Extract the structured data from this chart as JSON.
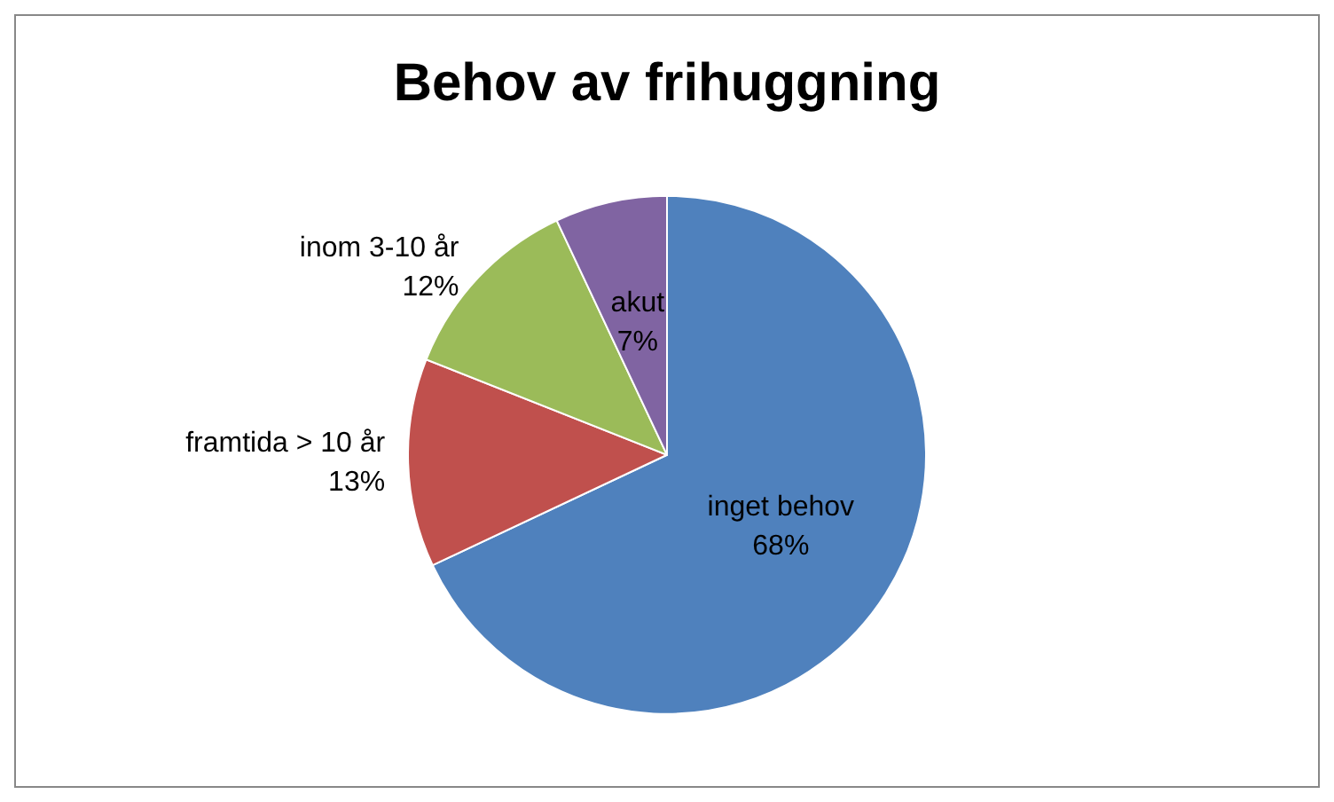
{
  "chart_data": {
    "type": "pie",
    "title": "Behov av frihuggning",
    "categories": [
      "inget behov",
      "framtida > 10 år",
      "inom 3-10 år",
      "akut"
    ],
    "values": [
      68,
      13,
      12,
      7
    ],
    "colors": [
      "#4f81bd",
      "#c0504d",
      "#9bbb59",
      "#8064a2"
    ],
    "value_labels": [
      "68%",
      "13%",
      "12%",
      "7%"
    ],
    "legend": false
  }
}
